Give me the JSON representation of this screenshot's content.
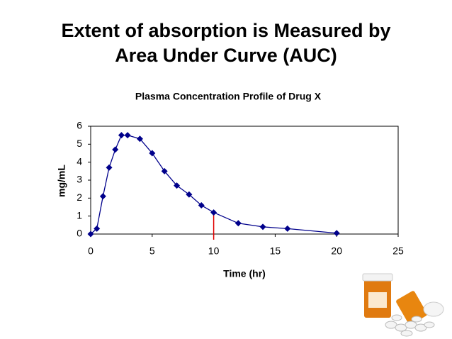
{
  "slide": {
    "title_lines": [
      "Extent of absorption is Measured by",
      "Area Under Curve (AUC)"
    ]
  },
  "chart_data": {
    "type": "line",
    "title": "Plasma Concentration Profile of Drug X",
    "x_label": "Time (hr)",
    "y_label": "mg/mL",
    "x": [
      0,
      0.5,
      1,
      1.5,
      2,
      2.5,
      3,
      4,
      5,
      6,
      7,
      8,
      9,
      10,
      12,
      14,
      16,
      20
    ],
    "values": [
      0,
      0.3,
      2.1,
      3.7,
      4.7,
      5.5,
      5.5,
      5.3,
      4.5,
      3.5,
      2.7,
      2.2,
      1.6,
      1.2,
      0.6,
      0.4,
      0.3,
      0.05
    ],
    "color": "#00008b",
    "xlim": [
      0,
      25
    ],
    "xticks": [
      0,
      5,
      10,
      15,
      20,
      25
    ],
    "ylim": [
      0,
      6
    ],
    "yticks": [
      0,
      1,
      2,
      3,
      4,
      5,
      6
    ],
    "reference_line": {
      "x": 10,
      "color": "#e00000"
    }
  }
}
